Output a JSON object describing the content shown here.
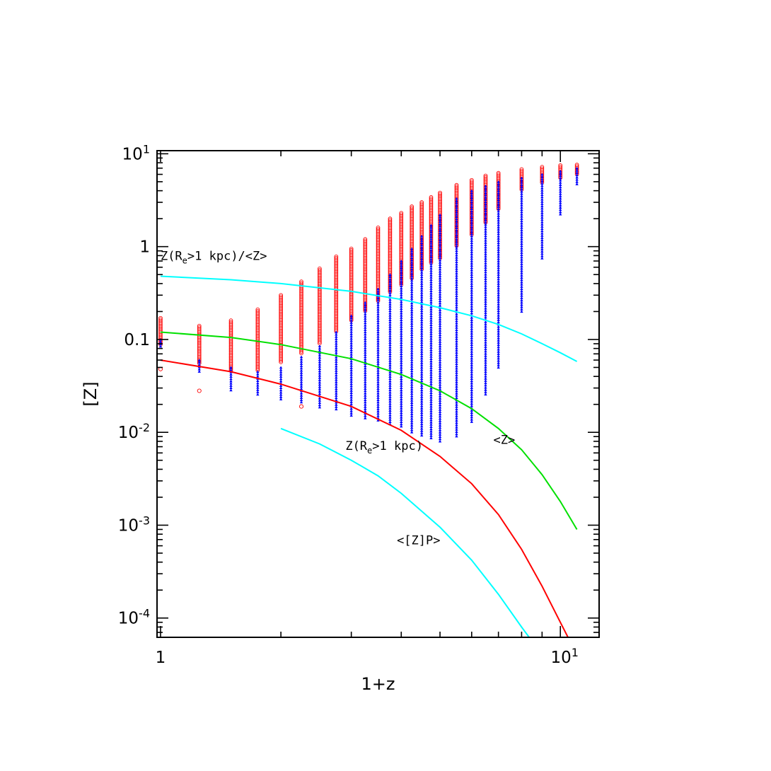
{
  "chart_data": {
    "type": "line",
    "title": "",
    "xlabel": "1+z",
    "ylabel": "[Z]",
    "x_scale": "log",
    "y_scale": "log",
    "xlim": [
      0.98,
      12.5
    ],
    "ylim": [
      6.2e-05,
      10.8
    ],
    "grid": false,
    "legend": "none",
    "x_ticks": [
      {
        "value": 1,
        "base": "1",
        "exp": ""
      },
      {
        "value": 10,
        "base": "10",
        "exp": "1"
      }
    ],
    "y_ticks": [
      {
        "value": 0.0001,
        "base": "10",
        "exp": "-4"
      },
      {
        "value": 0.001,
        "base": "10",
        "exp": "-3"
      },
      {
        "value": 0.01,
        "base": "10",
        "exp": "-2"
      },
      {
        "value": 0.1,
        "base": "0.1",
        "exp": ""
      },
      {
        "value": 1,
        "base": "1",
        "exp": ""
      },
      {
        "value": 10,
        "base": "10",
        "exp": "1"
      }
    ],
    "series": [
      {
        "label": "Z(R_e>1 kpc)/<Z>",
        "color": "#00ffff",
        "x": [
          1.0,
          1.5,
          2.0,
          3.0,
          4.0,
          5.0,
          6.0,
          7.0,
          8.0,
          9.0,
          10.0,
          11.0
        ],
        "y": [
          0.48,
          0.44,
          0.4,
          0.33,
          0.27,
          0.22,
          0.18,
          0.145,
          0.115,
          0.09,
          0.072,
          0.058
        ]
      },
      {
        "label": "<Z>",
        "color": "#00e000",
        "x": [
          1.0,
          1.5,
          2.0,
          3.0,
          4.0,
          5.0,
          6.0,
          7.0,
          8.0,
          9.0,
          10.0,
          11.0
        ],
        "y": [
          0.12,
          0.105,
          0.088,
          0.062,
          0.042,
          0.028,
          0.018,
          0.011,
          0.0065,
          0.0035,
          0.0018,
          0.0009
        ]
      },
      {
        "label": "Z(R_e>1 kpc)",
        "color": "#ff0000",
        "x": [
          1.0,
          1.5,
          2.0,
          3.0,
          4.0,
          5.0,
          6.0,
          7.0,
          8.0,
          9.0,
          10.0,
          11.0
        ],
        "y": [
          0.06,
          0.045,
          0.033,
          0.019,
          0.0105,
          0.0055,
          0.0028,
          0.0013,
          0.00055,
          0.00022,
          9e-05,
          4e-05
        ]
      },
      {
        "label": "<[Z]P>",
        "color": "#00ffff",
        "x": [
          2.0,
          2.5,
          3.0,
          3.5,
          4.0,
          5.0,
          6.0,
          7.0,
          8.0,
          9.0
        ],
        "y": [
          0.011,
          0.0075,
          0.005,
          0.0034,
          0.0022,
          0.00095,
          0.00042,
          0.00018,
          8e-05,
          4e-05
        ]
      }
    ],
    "scatter_columns": [
      {
        "x": 1.0,
        "red_min": 0.085,
        "red_max": 0.17,
        "blue_min": 0.08,
        "blue_max": 0.1
      },
      {
        "x": 1.25,
        "red_min": 0.055,
        "red_max": 0.14,
        "blue_min": 0.045,
        "blue_max": 0.06
      },
      {
        "x": 1.5,
        "red_min": 0.045,
        "red_max": 0.16,
        "blue_min": 0.028,
        "blue_max": 0.05
      },
      {
        "x": 1.75,
        "red_min": 0.045,
        "red_max": 0.21,
        "blue_min": 0.025,
        "blue_max": 0.045
      },
      {
        "x": 2.0,
        "red_min": 0.055,
        "red_max": 0.3,
        "blue_min": 0.022,
        "blue_max": 0.05
      },
      {
        "x": 2.25,
        "red_min": 0.07,
        "red_max": 0.42,
        "blue_min": 0.02,
        "blue_max": 0.065
      },
      {
        "x": 2.5,
        "red_min": 0.09,
        "red_max": 0.58,
        "blue_min": 0.018,
        "blue_max": 0.085
      },
      {
        "x": 2.75,
        "red_min": 0.12,
        "red_max": 0.78,
        "blue_min": 0.017,
        "blue_max": 0.12
      },
      {
        "x": 3.0,
        "red_min": 0.16,
        "red_max": 0.95,
        "blue_min": 0.015,
        "blue_max": 0.18
      },
      {
        "x": 3.25,
        "red_min": 0.2,
        "red_max": 1.2,
        "blue_min": 0.014,
        "blue_max": 0.25
      },
      {
        "x": 3.5,
        "red_min": 0.26,
        "red_max": 1.6,
        "blue_min": 0.013,
        "blue_max": 0.35
      },
      {
        "x": 3.75,
        "red_min": 0.32,
        "red_max": 2.0,
        "blue_min": 0.012,
        "blue_max": 0.5
      },
      {
        "x": 4.0,
        "red_min": 0.38,
        "red_max": 2.3,
        "blue_min": 0.011,
        "blue_max": 0.7
      },
      {
        "x": 4.25,
        "red_min": 0.45,
        "red_max": 2.7,
        "blue_min": 0.01,
        "blue_max": 0.95
      },
      {
        "x": 4.5,
        "red_min": 0.55,
        "red_max": 3.0,
        "blue_min": 0.009,
        "blue_max": 1.3
      },
      {
        "x": 4.75,
        "red_min": 0.65,
        "red_max": 3.4,
        "blue_min": 0.0085,
        "blue_max": 1.7
      },
      {
        "x": 5.0,
        "red_min": 0.75,
        "red_max": 3.8,
        "blue_min": 0.008,
        "blue_max": 2.2
      },
      {
        "x": 5.5,
        "red_min": 1.0,
        "red_max": 4.6,
        "blue_min": 0.009,
        "blue_max": 3.3
      },
      {
        "x": 6.0,
        "red_min": 1.3,
        "red_max": 5.2,
        "blue_min": 0.013,
        "blue_max": 4.0
      },
      {
        "x": 6.5,
        "red_min": 1.8,
        "red_max": 5.8,
        "blue_min": 0.025,
        "blue_max": 4.5
      },
      {
        "x": 7.0,
        "red_min": 2.5,
        "red_max": 6.2,
        "blue_min": 0.05,
        "blue_max": 5.0
      },
      {
        "x": 8.0,
        "red_min": 4.0,
        "red_max": 6.8,
        "blue_min": 0.2,
        "blue_max": 5.5
      },
      {
        "x": 9.0,
        "red_min": 4.8,
        "red_max": 7.2,
        "blue_min": 0.75,
        "blue_max": 6.0
      },
      {
        "x": 10.0,
        "red_min": 5.5,
        "red_max": 7.5,
        "blue_min": 2.2,
        "blue_max": 6.5
      },
      {
        "x": 11.0,
        "red_min": 6.0,
        "red_max": 7.6,
        "blue_min": 4.5,
        "blue_max": 7.0
      }
    ],
    "scatter_outliers": [
      {
        "x": 1.0,
        "y": 0.048
      },
      {
        "x": 1.25,
        "y": 0.028
      },
      {
        "x": 2.25,
        "y": 0.019
      }
    ],
    "annotations": [
      {
        "key": "ratio",
        "x": 1.0,
        "y": 0.72,
        "base": "Z(R",
        "sub": "e",
        "rest": ">1 kpc)/<Z>"
      },
      {
        "key": "zre",
        "x": 2.9,
        "y": 0.0065,
        "base": "Z(R",
        "sub": "e",
        "rest": ">1 kpc)"
      },
      {
        "key": "mean",
        "x": 6.8,
        "y": 0.0075,
        "base": "<Z>",
        "sub": "",
        "rest": ""
      },
      {
        "key": "zp",
        "x": 3.9,
        "y": 0.00062,
        "base": "<[Z]P>",
        "sub": "",
        "rest": ""
      }
    ],
    "colors": {
      "red_marker": "#ff0000",
      "blue_marker": "#0000ff",
      "axis": "#000000"
    }
  }
}
